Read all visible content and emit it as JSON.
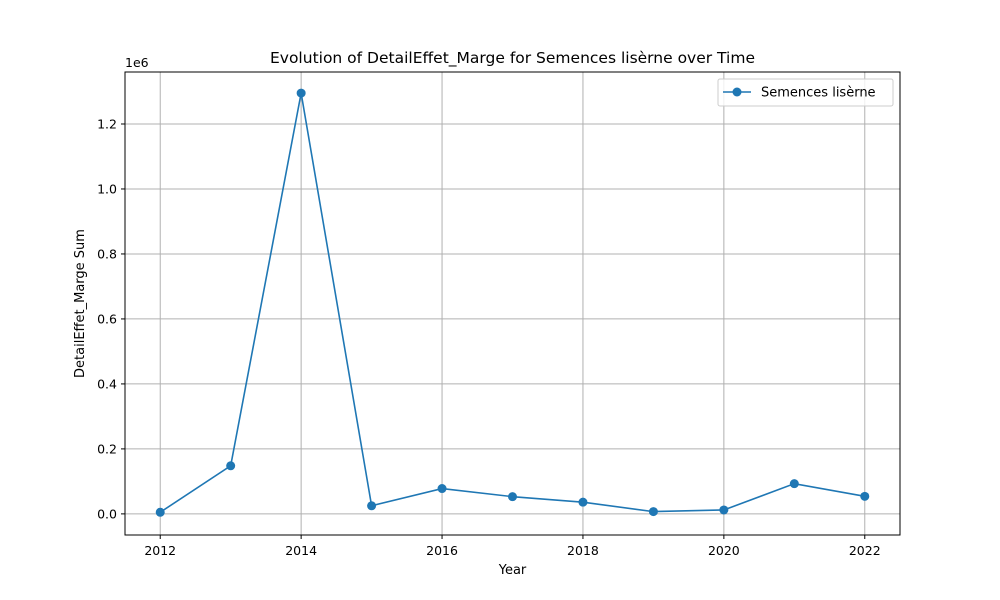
{
  "chart_data": {
    "type": "line",
    "title": "Evolution of DetailEffet_Marge for Semences  lisèrne over Time",
    "xlabel": "Year",
    "ylabel": "DetailEffet_Marge Sum",
    "y_offset_label": "1e6",
    "x": [
      2012,
      2013,
      2014,
      2015,
      2016,
      2017,
      2018,
      2019,
      2020,
      2021,
      2022
    ],
    "series": [
      {
        "name": "Semences  lisèrne",
        "color": "#1f77b4",
        "values": [
          5000,
          148000,
          1295000,
          25000,
          78000,
          53000,
          36000,
          7000,
          12000,
          93000,
          54000
        ]
      }
    ],
    "xlim": [
      2011.5,
      2022.5
    ],
    "ylim": [
      -0.065,
      1.36
    ],
    "y_scale_factor": 1000000,
    "x_ticks": [
      "2012",
      "2014",
      "2016",
      "2018",
      "2020",
      "2022"
    ],
    "y_ticks": [
      "0.0",
      "0.2",
      "0.4",
      "0.6",
      "0.8",
      "1.0",
      "1.2"
    ],
    "grid": true,
    "legend_position": "top-right"
  }
}
